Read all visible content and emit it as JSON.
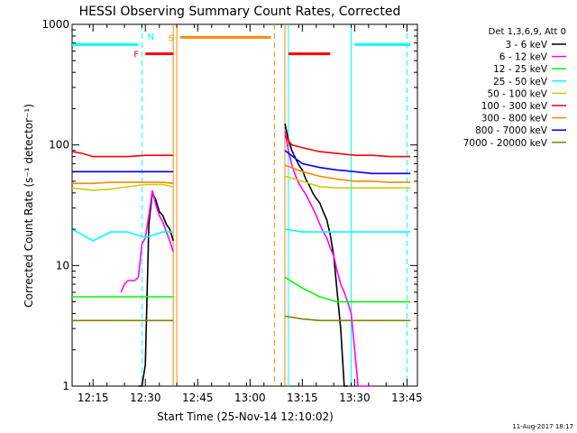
{
  "chart_data": {
    "type": "line",
    "title": "HESSI Observing Summary Count Rates, Corrected",
    "xlabel": "Start Time (25-Nov-14 12:10:02)",
    "ylabel": "Corrected Count Rate (s⁻¹ detector⁻¹)",
    "xlim": [
      "12:09",
      "13:48"
    ],
    "ylim": [
      1,
      1000
    ],
    "yscale": "log",
    "xticks": [
      "12:15",
      "12:30",
      "12:45",
      "13:00",
      "13:15",
      "13:30",
      "13:45"
    ],
    "yticks": [
      1,
      10,
      100,
      1000
    ],
    "ytick_labels": [
      "1",
      "10",
      "100",
      "1000"
    ],
    "footer": "11-Aug-2017 18:17",
    "legend_header": "Det 1,3,6,9, Att 0",
    "legend_position": "right",
    "gaps": [
      [
        "12:38",
        "13:10"
      ]
    ],
    "series": [
      {
        "name": "3 - 6 keV",
        "color": "#000000",
        "x": [
          "12:28",
          "12:29",
          "12:30",
          "12:31",
          "12:32",
          "12:33",
          "12:34",
          "12:35",
          "12:36",
          "12:37",
          "12:38",
          "13:10",
          "13:11",
          "13:12",
          "13:13",
          "13:14",
          "13:15",
          "13:16",
          "13:17",
          "13:18",
          "13:19",
          "13:20",
          "13:21",
          "13:22",
          "13:23",
          "13:24",
          "13:25",
          "13:26",
          "13:27",
          "13:28"
        ],
        "values": [
          1,
          1,
          1.5,
          22,
          40,
          35,
          28,
          26,
          22,
          20,
          16,
          150,
          110,
          90,
          78,
          68,
          62,
          52,
          46,
          40,
          36,
          33,
          28,
          24,
          18,
          12,
          6,
          3,
          1,
          1
        ]
      },
      {
        "name": "6 - 12 keV",
        "color": "#ff00ff",
        "x": [
          "12:23",
          "12:24",
          "12:25",
          "12:26",
          "12:27",
          "12:28",
          "12:29",
          "12:30",
          "12:31",
          "12:32",
          "12:33",
          "12:34",
          "12:35",
          "12:36",
          "12:37",
          "12:38",
          "13:10",
          "13:11",
          "13:12",
          "13:13",
          "13:14",
          "13:15",
          "13:16",
          "13:17",
          "13:18",
          "13:19",
          "13:20",
          "13:21",
          "13:22",
          "13:23",
          "13:24",
          "13:25",
          "13:26",
          "13:27",
          "13:28",
          "13:29",
          "13:30",
          "13:31",
          "13:32",
          "13:33",
          "13:34",
          "13:35"
        ],
        "values": [
          6,
          7,
          7.5,
          7.5,
          7.5,
          8,
          15,
          17,
          26,
          42,
          32,
          26,
          23,
          19,
          16,
          13,
          130,
          90,
          68,
          56,
          48,
          43,
          39,
          34,
          30,
          26,
          22,
          19,
          17,
          14,
          12,
          9,
          7,
          6,
          5,
          4,
          2,
          1,
          1,
          1,
          1,
          1
        ]
      },
      {
        "name": "12 - 25 keV",
        "color": "#00ff00",
        "x": [
          "12:09",
          "12:15",
          "12:20",
          "12:25",
          "12:30",
          "12:35",
          "12:38",
          "13:10",
          "13:15",
          "13:20",
          "13:25",
          "13:30",
          "13:35",
          "13:40",
          "13:46"
        ],
        "values": [
          5.5,
          5.5,
          5.5,
          5.5,
          5.5,
          5.5,
          5.5,
          8,
          6.5,
          5.5,
          5,
          5,
          5,
          5,
          5
        ]
      },
      {
        "name": "25 - 50 keV",
        "color": "#00ffff",
        "x": [
          "12:09",
          "12:15",
          "12:20",
          "12:25",
          "12:30",
          "12:35",
          "12:38",
          "13:10",
          "13:15",
          "13:20",
          "13:25",
          "13:30",
          "13:35",
          "13:40",
          "13:46"
        ],
        "values": [
          20,
          16,
          19,
          19,
          17,
          19,
          19,
          20,
          19,
          19,
          19,
          19,
          19,
          19,
          19
        ]
      },
      {
        "name": "50 - 100 keV",
        "color": "#cccc00",
        "x": [
          "12:09",
          "12:15",
          "12:20",
          "12:25",
          "12:30",
          "12:35",
          "12:38",
          "13:10",
          "13:15",
          "13:20",
          "13:25",
          "13:30",
          "13:35",
          "13:40",
          "13:46"
        ],
        "values": [
          44,
          42,
          43,
          45,
          47,
          47,
          45,
          55,
          50,
          45,
          44,
          44,
          44,
          44,
          44
        ]
      },
      {
        "name": "100 - 300 keV",
        "color": "#ff0000",
        "x": [
          "12:09",
          "12:12",
          "12:15",
          "12:20",
          "12:25",
          "12:30",
          "12:35",
          "12:38",
          "13:10",
          "13:12",
          "13:15",
          "13:20",
          "13:25",
          "13:30",
          "13:35",
          "13:40",
          "13:46"
        ],
        "values": [
          88,
          85,
          80,
          80,
          80,
          82,
          82,
          82,
          120,
          100,
          95,
          88,
          85,
          82,
          82,
          80,
          80
        ]
      },
      {
        "name": "300 - 800 keV",
        "color": "#ff8800",
        "x": [
          "12:09",
          "12:15",
          "12:20",
          "12:25",
          "12:30",
          "12:35",
          "12:38",
          "13:10",
          "13:15",
          "13:20",
          "13:25",
          "13:30",
          "13:35",
          "13:40",
          "13:46"
        ],
        "values": [
          48,
          48,
          49,
          49,
          49,
          49,
          48,
          68,
          60,
          55,
          52,
          50,
          50,
          49,
          49
        ]
      },
      {
        "name": "800 - 7000 keV",
        "color": "#0000ff",
        "x": [
          "12:09",
          "12:15",
          "12:20",
          "12:25",
          "12:30",
          "12:35",
          "12:38",
          "13:10",
          "13:15",
          "13:20",
          "13:25",
          "13:30",
          "13:35",
          "13:40",
          "13:46"
        ],
        "values": [
          60,
          60,
          60,
          60,
          60,
          60,
          60,
          90,
          70,
          65,
          62,
          60,
          58,
          58,
          58
        ]
      },
      {
        "name": "7000 - 20000 keV",
        "color": "#808000",
        "x": [
          "12:09",
          "12:15",
          "12:20",
          "12:25",
          "12:30",
          "12:35",
          "12:38",
          "13:10",
          "13:15",
          "13:20",
          "13:25",
          "13:30",
          "13:35",
          "13:40",
          "13:46"
        ],
        "values": [
          3.5,
          3.5,
          3.5,
          3.5,
          3.5,
          3.5,
          3.5,
          3.8,
          3.6,
          3.5,
          3.5,
          3.5,
          3.5,
          3.5,
          3.5
        ]
      }
    ],
    "flag_bars": [
      {
        "label": "",
        "color": "#00ffff",
        "level": 680,
        "x_start": "12:09",
        "x_end": "12:28"
      },
      {
        "label": "N",
        "color": "#00ffff",
        "level": 800,
        "x_start": "12:29",
        "x_end": "12:29"
      },
      {
        "label": "F",
        "color": "#ff0000",
        "level": 570,
        "x_start": "12:30",
        "x_end": "12:38"
      },
      {
        "label": "S",
        "color": "#ff8800",
        "level": 780,
        "x_start": "12:40",
        "x_end": "13:06"
      },
      {
        "label": "",
        "color": "#ff0000",
        "level": 570,
        "x_start": "13:11",
        "x_end": "13:23"
      },
      {
        "label": "",
        "color": "#00ffff",
        "level": 680,
        "x_start": "13:30",
        "x_end": "13:46"
      }
    ],
    "vertical_markers": [
      {
        "x": "12:29",
        "color": "#00ffff",
        "style": "dashed"
      },
      {
        "x": "12:38",
        "color": "#ff8800",
        "style": "solid"
      },
      {
        "x": "12:39",
        "color": "#ff8800",
        "style": "solid"
      },
      {
        "x": "13:07",
        "color": "#ff8800",
        "style": "dashed"
      },
      {
        "x": "13:10",
        "color": "#ff8800",
        "style": "solid"
      },
      {
        "x": "13:11",
        "color": "#00ffff",
        "style": "solid"
      },
      {
        "x": "13:29",
        "color": "#00ffff",
        "style": "solid"
      },
      {
        "x": "13:45",
        "color": "#00ffff",
        "style": "dashed"
      }
    ]
  }
}
